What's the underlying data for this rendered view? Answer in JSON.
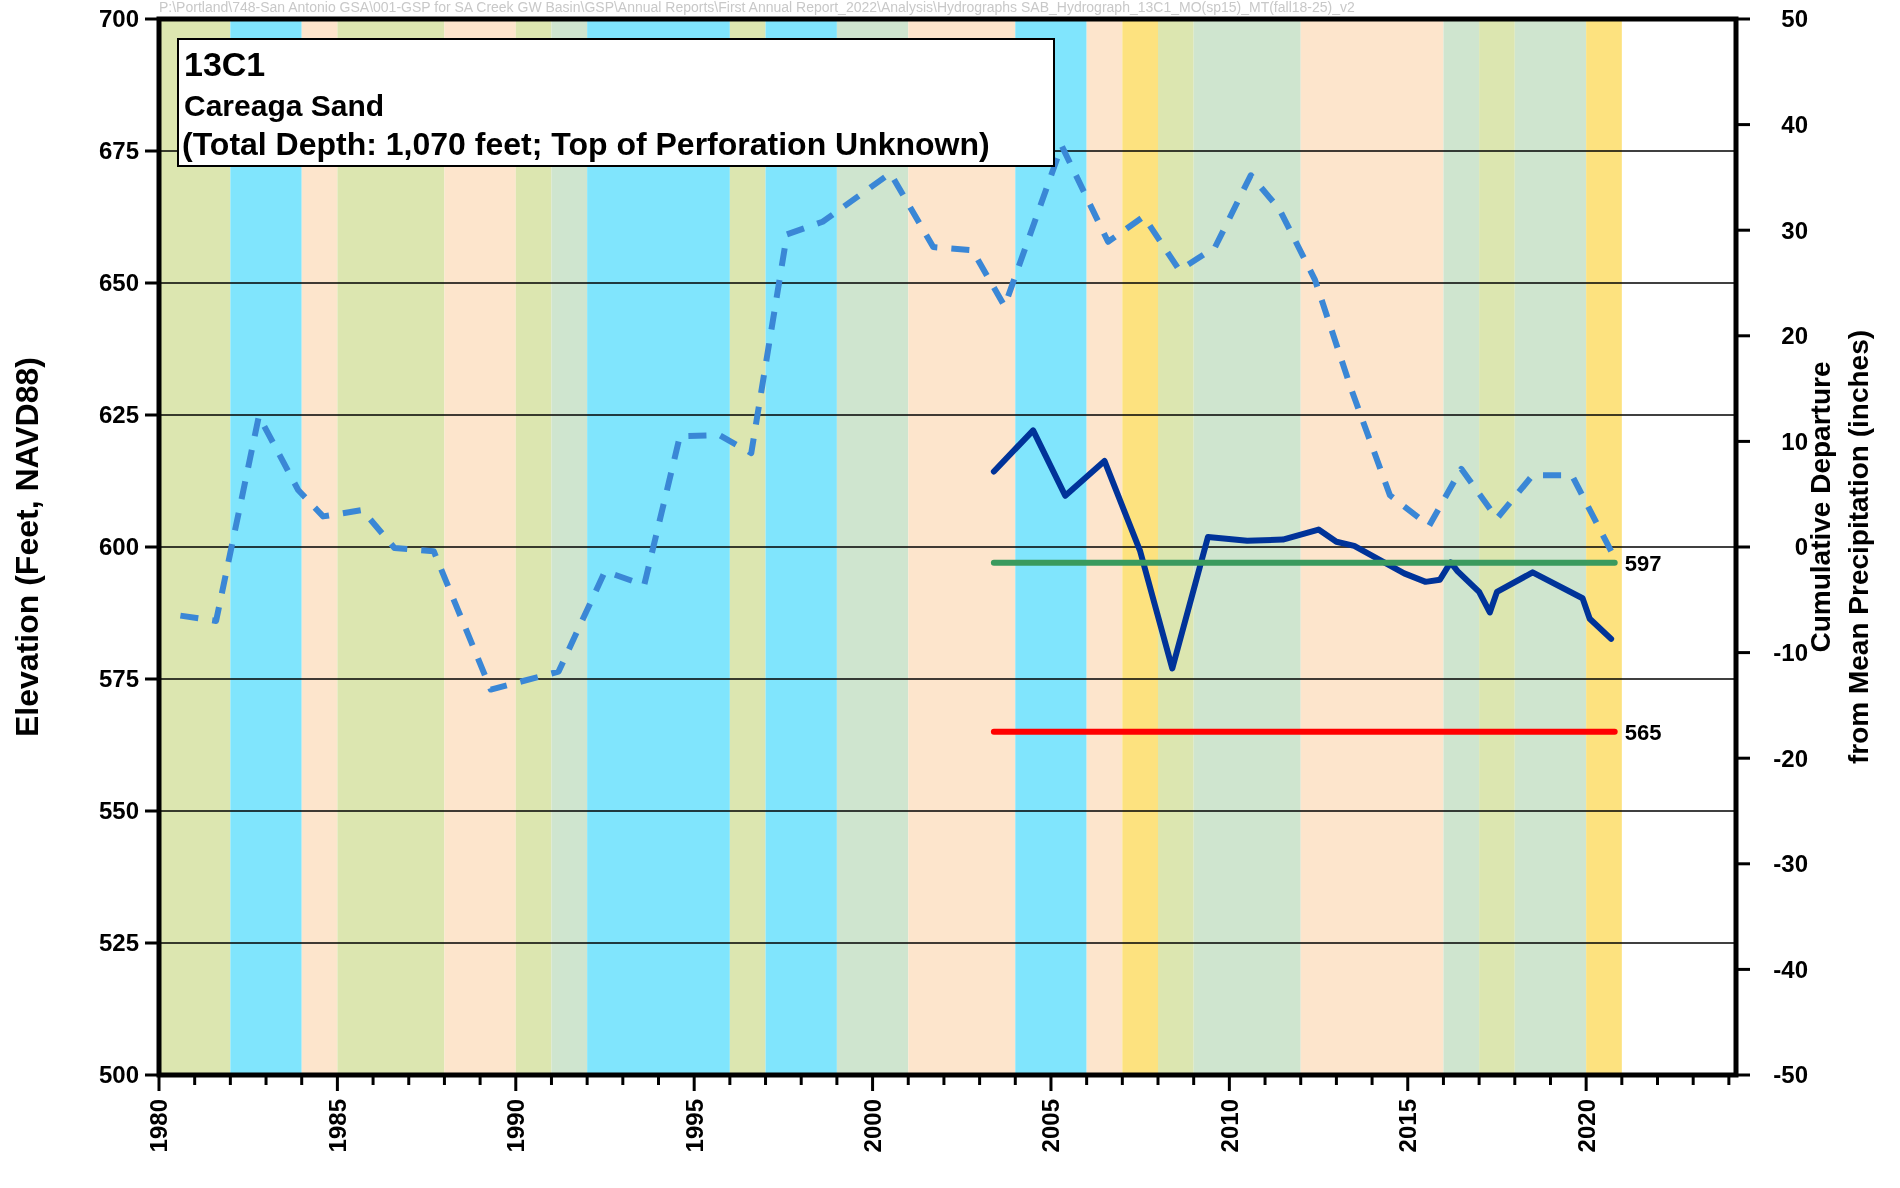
{
  "chart_data": {
    "type": "line",
    "title": "13C1",
    "subtitle": "Careaga Sand",
    "annotations": [
      "P:\\Portland\\748-San Antonio GSA\\001-GSP for SA Creek GW Basin\\GSP\\Annual Reports\\First Annual Report_2022\\Analysis\\Hydrographs SAB_Hydrograph_13C1_MO(sp15)_MT(fall18-25)_v2",
      "(Total Depth: 1,070 feet; Top of Perforation Unknown)"
    ],
    "ylabel": "Elevation (Feet, NAVD88)",
    "y2label": "Cumulative Departure\nfrom Mean Precipitation (inches)",
    "xlim": [
      1980,
      2024.2
    ],
    "xticks": [
      1980,
      {
        "value": 1981,
        "label": null
      },
      {
        "value": 1982,
        "label": null
      },
      {
        "value": 1983,
        "label": null
      },
      {
        "value": 1984,
        "label": null
      },
      1985,
      {
        "value": 1986,
        "label": null
      },
      {
        "value": 1987,
        "label": null
      },
      {
        "value": 1988,
        "label": null
      },
      {
        "value": 1989,
        "label": null
      },
      1990,
      {
        "value": 1991,
        "label": null
      },
      {
        "value": 1992,
        "label": null
      },
      {
        "value": 1993,
        "label": null
      },
      {
        "value": 1994,
        "label": null
      },
      1995,
      {
        "value": 1996,
        "label": null
      },
      {
        "value": 1997,
        "label": null
      },
      {
        "value": 1998,
        "label": null
      },
      {
        "value": 1999,
        "label": null
      },
      2000,
      {
        "value": 2001,
        "label": null
      },
      {
        "value": 2002,
        "label": null
      },
      {
        "value": 2003,
        "label": null
      },
      {
        "value": 2004,
        "label": null
      },
      2005,
      {
        "value": 2006,
        "label": null
      },
      {
        "value": 2007,
        "label": null
      },
      {
        "value": 2008,
        "label": null
      },
      {
        "value": 2009,
        "label": null
      },
      2010,
      {
        "value": 2011,
        "label": null
      },
      {
        "value": 2012,
        "label": null
      },
      {
        "value": 2013,
        "label": null
      },
      {
        "value": 2014,
        "label": null
      },
      2015,
      {
        "value": 2016,
        "label": null
      },
      {
        "value": 2017,
        "label": null
      },
      {
        "value": 2018,
        "label": null
      },
      {
        "value": 2019,
        "label": null
      },
      2020,
      {
        "value": 2021,
        "label": null
      },
      {
        "value": 2022,
        "label": null
      },
      {
        "value": 2023,
        "label": null
      },
      {
        "value": 2024,
        "label": null
      }
    ],
    "ylim": [
      500,
      700
    ],
    "yticks": [
      500,
      525,
      550,
      575,
      600,
      625,
      650,
      675,
      700
    ],
    "y2lim": [
      -50,
      50
    ],
    "y2ticks": [
      -50,
      -40,
      -30,
      -20,
      -10,
      0,
      10,
      20,
      30,
      40,
      50
    ],
    "grid": "y",
    "bands": [
      {
        "axis": "x",
        "from": 1980,
        "to": 1982,
        "color": "#dce6b0"
      },
      {
        "axis": "x",
        "from": 1982,
        "to": 1984,
        "color": "#80e5fd"
      },
      {
        "axis": "x",
        "from": 1984,
        "to": 1985,
        "color": "#fde5cc"
      },
      {
        "axis": "x",
        "from": 1985,
        "to": 1988,
        "color": "#dce6b0"
      },
      {
        "axis": "x",
        "from": 1988,
        "to": 1990,
        "color": "#fde5cc"
      },
      {
        "axis": "x",
        "from": 1990,
        "to": 1991,
        "color": "#dce6b0"
      },
      {
        "axis": "x",
        "from": 1991,
        "to": 1992,
        "color": "#cfe5cf"
      },
      {
        "axis": "x",
        "from": 1992,
        "to": 1996,
        "color": "#80e5fd"
      },
      {
        "axis": "x",
        "from": 1996,
        "to": 1997,
        "color": "#dce6b0"
      },
      {
        "axis": "x",
        "from": 1997,
        "to": 1999,
        "color": "#80e5fd"
      },
      {
        "axis": "x",
        "from": 1999,
        "to": 2001,
        "color": "#cfe5cf"
      },
      {
        "axis": "x",
        "from": 2001,
        "to": 2004,
        "color": "#fde5cc"
      },
      {
        "axis": "x",
        "from": 2004,
        "to": 2006,
        "color": "#80e5fd"
      },
      {
        "axis": "x",
        "from": 2006,
        "to": 2007,
        "color": "#fde5cc"
      },
      {
        "axis": "x",
        "from": 2007,
        "to": 2008,
        "color": "#fde27f"
      },
      {
        "axis": "x",
        "from": 2008,
        "to": 2009,
        "color": "#dce6b0"
      },
      {
        "axis": "x",
        "from": 2009,
        "to": 2012,
        "color": "#cfe5cf"
      },
      {
        "axis": "x",
        "from": 2012,
        "to": 2016,
        "color": "#fde5cc"
      },
      {
        "axis": "x",
        "from": 2016,
        "to": 2017,
        "color": "#cfe5cf"
      },
      {
        "axis": "x",
        "from": 2017,
        "to": 2018,
        "color": "#dce6b0"
      },
      {
        "axis": "x",
        "from": 2018,
        "to": 2020,
        "color": "#cfe5cf"
      },
      {
        "axis": "x",
        "from": 2020,
        "to": 2021,
        "color": "#fde27f"
      }
    ],
    "series": [
      {
        "type": "line",
        "axis": "y2",
        "color": "#3a87d6",
        "line_style": "dashed",
        "x": [
          1980.6,
          1981.6,
          1982.8,
          1983.9,
          1984.6,
          1985.7,
          1986.6,
          1987.7,
          1989.3,
          1991.2,
          1992.5,
          1993.6,
          1994.6,
          1995.7,
          1996.6,
          1997.6,
          1998.6,
          2000.5,
          2001.7,
          2002.8,
          2003.7,
          2005.3,
          2006.6,
          2007.6,
          2008.6,
          2009.6,
          2010.6,
          2011.4,
          2012.4,
          2013.4,
          2014.5,
          2015.6,
          2016.5,
          2017.5,
          2018.5,
          2019.6,
          2020.7
        ],
        "values": [
          -6.5,
          -7,
          12.4,
          5.4,
          2.9,
          3.5,
          -0.1,
          -0.4,
          -13.5,
          -11.8,
          -2.3,
          -3.6,
          10.5,
          10.6,
          8.9,
          29.6,
          30.8,
          35.4,
          28.4,
          28.1,
          22.8,
          38,
          28.9,
          31.3,
          26.2,
          28.4,
          35.2,
          32,
          25.3,
          15.1,
          4.9,
          2,
          7.4,
          2.7,
          6.8,
          6.8,
          -0.4
        ]
      },
      {
        "type": "line",
        "color": "#003399",
        "line_style": "solid",
        "x": [
          2003.4,
          2004.5,
          2005.4,
          2006.5,
          2007.5,
          2008.4,
          2009.4,
          2010.5,
          2011.5,
          2012.5,
          2013,
          2013.5,
          2014.9,
          2015.5,
          2015.9,
          2016.2,
          2016.4,
          2017,
          2017.3,
          2017.5,
          2018.5,
          2019.9,
          2020.1,
          2020.7
        ],
        "values": [
          614.3,
          622.1,
          609.7,
          616.3,
          599.2,
          577,
          601.9,
          601.2,
          601.4,
          603.3,
          601,
          600.2,
          595,
          593.4,
          593.8,
          597.1,
          595.4,
          591.5,
          587.6,
          591.5,
          595.2,
          590.3,
          586.4,
          582.6
        ]
      },
      {
        "type": "line",
        "color": "#3a9a5e",
        "line_style": "solid",
        "x": [
          2003.4,
          2020.8
        ],
        "values": [
          597,
          597
        ],
        "value_labels": [
          null,
          "597"
        ]
      },
      {
        "type": "line",
        "color": "#ff0000",
        "line_style": "solid",
        "x": [
          2003.4,
          2020.8
        ],
        "values": [
          565,
          565
        ],
        "value_labels": [
          null,
          "565"
        ]
      }
    ]
  }
}
